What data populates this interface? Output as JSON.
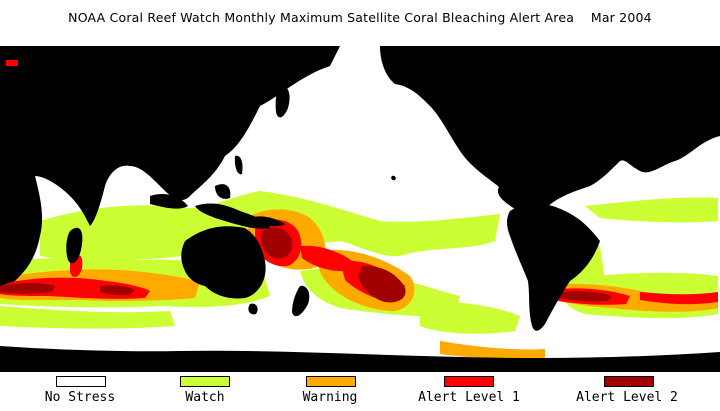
{
  "title": "NOAA Coral Reef Watch Monthly Maximum Satellite Coral Bleaching Alert Area",
  "date": "Mar 2004",
  "colors": {
    "ocean": "#ffffff",
    "land": "#000000",
    "no_stress": "#ffffff",
    "watch": "#ccff33",
    "warning": "#ffaa00",
    "alert_level_1": "#ff0000",
    "alert_level_2": "#a00000"
  },
  "legend": [
    {
      "label": "No Stress",
      "color": "#ffffff"
    },
    {
      "label": "Watch",
      "color": "#ccff33"
    },
    {
      "label": "Warning",
      "color": "#ffaa00"
    },
    {
      "label": "Alert Level 1",
      "color": "#ff0000"
    },
    {
      "label": "Alert Level 2",
      "color": "#a00000"
    }
  ]
}
